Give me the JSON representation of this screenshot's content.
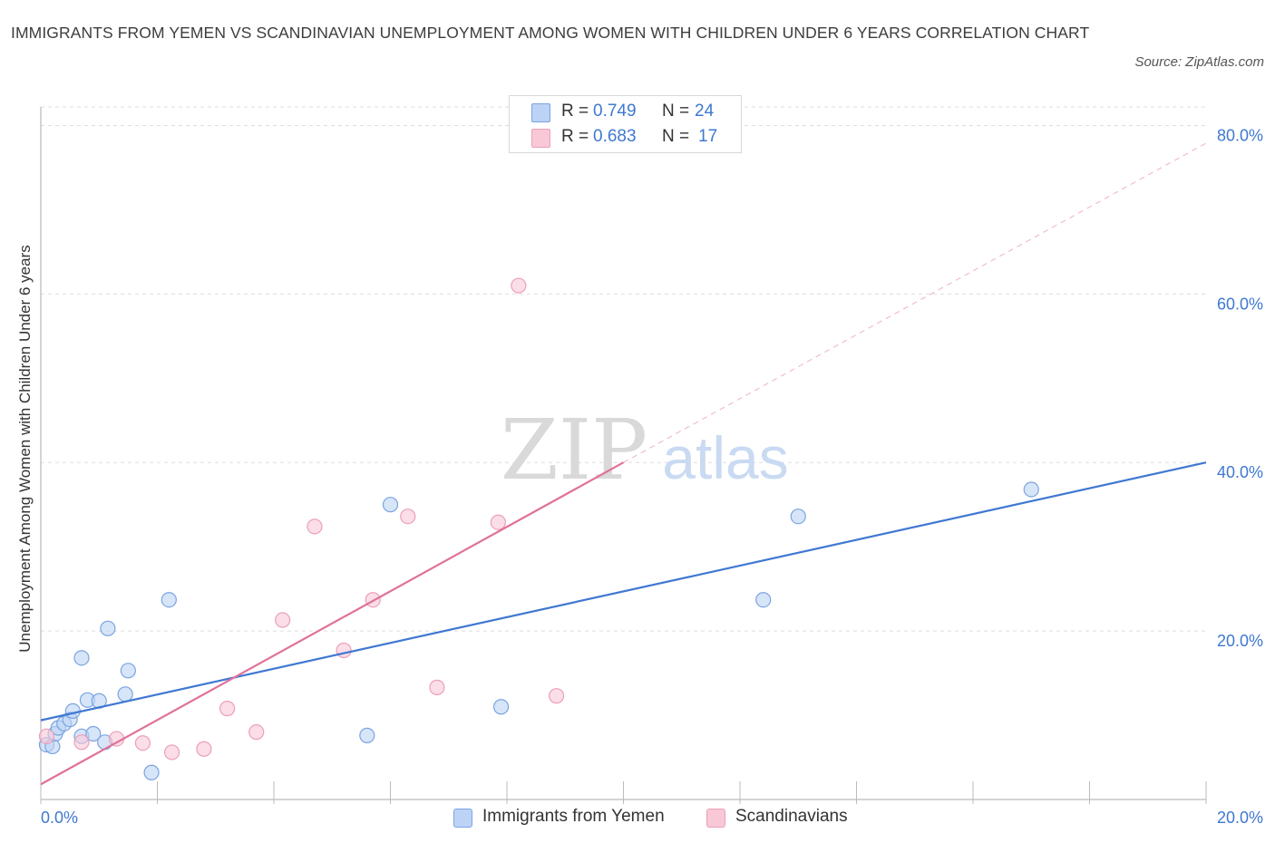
{
  "title": "IMMIGRANTS FROM YEMEN VS SCANDINAVIAN UNEMPLOYMENT AMONG WOMEN WITH CHILDREN UNDER 6 YEARS CORRELATION CHART",
  "source": "Source: ZipAtlas.com",
  "watermark": {
    "zip": "ZIP",
    "atlas": "atlas"
  },
  "colors": {
    "blue": "#3f78d1",
    "blue_fill": "#bcd3f5",
    "blue_stroke": "#7aa4e0",
    "pink": "#e0719a",
    "pink_fill": "#f8c8d7",
    "pink_stroke": "#ec9fb8",
    "grid": "#dedede",
    "tick_label": "#3f78d1"
  },
  "legend": {
    "rows": [
      {
        "r_label": "R = ",
        "r_value": "0.749",
        "n_label": "N = ",
        "n_value": "24"
      },
      {
        "r_label": "R = ",
        "r_value": "0.683",
        "n_label": "N = ",
        "n_value": "17"
      }
    ]
  },
  "chart_data": {
    "type": "scatter",
    "title": "IMMIGRANTS FROM YEMEN VS SCANDINAVIAN UNEMPLOYMENT AMONG WOMEN WITH CHILDREN UNDER 6 YEARS CORRELATION CHART",
    "xlabel": "",
    "ylabel": "Unemployment Among Women with Children Under 6 years",
    "xlim": [
      0,
      20
    ],
    "ylim": [
      0,
      80
    ],
    "x_tick_labels": [
      "0.0%",
      "20.0%"
    ],
    "y_tick_values": [
      20,
      40,
      60,
      80
    ],
    "y_tick_labels": [
      "20.0%",
      "40.0%",
      "60.0%",
      "80.0%"
    ],
    "grid": true,
    "legend_position": "top-center",
    "series": [
      {
        "name": "Immigrants from Yemen",
        "color": "blue",
        "R": 0.749,
        "N": 24,
        "points": [
          {
            "x": 0.1,
            "y": 6.5
          },
          {
            "x": 0.2,
            "y": 6.3
          },
          {
            "x": 0.25,
            "y": 7.8
          },
          {
            "x": 0.3,
            "y": 8.5
          },
          {
            "x": 0.4,
            "y": 9.0
          },
          {
            "x": 0.5,
            "y": 9.5
          },
          {
            "x": 0.55,
            "y": 10.5
          },
          {
            "x": 0.7,
            "y": 7.5
          },
          {
            "x": 0.7,
            "y": 16.8
          },
          {
            "x": 0.8,
            "y": 11.8
          },
          {
            "x": 0.9,
            "y": 7.8
          },
          {
            "x": 1.0,
            "y": 11.7
          },
          {
            "x": 1.1,
            "y": 6.8
          },
          {
            "x": 1.15,
            "y": 20.3
          },
          {
            "x": 1.45,
            "y": 12.5
          },
          {
            "x": 1.5,
            "y": 15.3
          },
          {
            "x": 1.9,
            "y": 3.2
          },
          {
            "x": 2.2,
            "y": 23.7
          },
          {
            "x": 5.6,
            "y": 7.6
          },
          {
            "x": 6.0,
            "y": 35.0
          },
          {
            "x": 7.9,
            "y": 11.0
          },
          {
            "x": 12.4,
            "y": 23.7
          },
          {
            "x": 13.0,
            "y": 33.6
          },
          {
            "x": 17.0,
            "y": 36.8
          }
        ],
        "trend": {
          "x1": 0,
          "y1": 9.4,
          "x2": 20,
          "y2": 40.0
        }
      },
      {
        "name": "Scandinavians",
        "color": "pink",
        "R": 0.683,
        "N": 17,
        "points": [
          {
            "x": 0.1,
            "y": 7.5
          },
          {
            "x": 0.7,
            "y": 6.8
          },
          {
            "x": 1.3,
            "y": 7.2
          },
          {
            "x": 1.75,
            "y": 6.7
          },
          {
            "x": 2.25,
            "y": 5.6
          },
          {
            "x": 2.8,
            "y": 6.0
          },
          {
            "x": 3.2,
            "y": 10.8
          },
          {
            "x": 3.7,
            "y": 8.0
          },
          {
            "x": 4.15,
            "y": 21.3
          },
          {
            "x": 4.7,
            "y": 32.4
          },
          {
            "x": 5.2,
            "y": 17.7
          },
          {
            "x": 5.7,
            "y": 23.7
          },
          {
            "x": 6.3,
            "y": 33.6
          },
          {
            "x": 6.8,
            "y": 13.3
          },
          {
            "x": 7.85,
            "y": 32.9
          },
          {
            "x": 8.2,
            "y": 61.0
          },
          {
            "x": 8.85,
            "y": 12.3
          }
        ],
        "trend": {
          "x1": 0,
          "y1": 1.8,
          "x2": 10.0,
          "y2": 40.0
        },
        "trend_dashed_extension": {
          "x1": 10.0,
          "y1": 40.0,
          "x2": 20,
          "y2": 77.9
        }
      }
    ]
  }
}
